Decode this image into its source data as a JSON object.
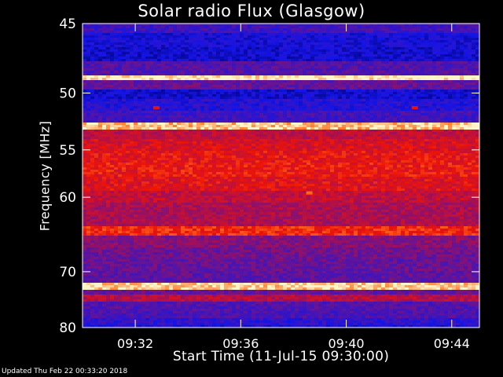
{
  "chart_data": {
    "type": "heatmap",
    "title": "Solar radio Flux (Glasgow)",
    "xlabel": "Start Time (11-Jul-15 09:30:00)",
    "ylabel": "Frequency [MHz]",
    "x_ticks": [
      "09:32",
      "09:36",
      "09:40",
      "09:44"
    ],
    "x_tick_minutes": [
      2,
      6,
      10,
      14
    ],
    "xlim_minutes": [
      0,
      15.05
    ],
    "y_ticks": [
      45,
      50,
      55,
      60,
      70,
      80
    ],
    "ylim": [
      45,
      80
    ],
    "y_scale": "reciprocal",
    "colormap": "blue-purple-red-yellow",
    "frequency_bands": [
      {
        "f": 45.2,
        "level": 0.3
      },
      {
        "f": 46.0,
        "level": 0.18
      },
      {
        "f": 47.0,
        "level": 0.15
      },
      {
        "f": 48.3,
        "level": 0.35
      },
      {
        "f": 48.8,
        "level": 1.0
      },
      {
        "f": 49.3,
        "level": 0.4
      },
      {
        "f": 50.0,
        "level": 0.15
      },
      {
        "f": 51.0,
        "level": 0.22
      },
      {
        "f": 52.0,
        "level": 0.3
      },
      {
        "f": 52.8,
        "level": 0.95
      },
      {
        "f": 53.6,
        "level": 0.6
      },
      {
        "f": 54.5,
        "level": 0.66
      },
      {
        "f": 55.5,
        "level": 0.7
      },
      {
        "f": 57.0,
        "level": 0.72
      },
      {
        "f": 58.5,
        "level": 0.68
      },
      {
        "f": 60.0,
        "level": 0.6
      },
      {
        "f": 61.5,
        "level": 0.55
      },
      {
        "f": 63.0,
        "level": 0.55
      },
      {
        "f": 64.2,
        "level": 0.75
      },
      {
        "f": 65.5,
        "level": 0.47
      },
      {
        "f": 67.0,
        "level": 0.42
      },
      {
        "f": 69.0,
        "level": 0.4
      },
      {
        "f": 71.0,
        "level": 0.38
      },
      {
        "f": 72.4,
        "level": 0.97
      },
      {
        "f": 73.5,
        "level": 0.4
      },
      {
        "f": 74.3,
        "level": 0.58
      },
      {
        "f": 76.0,
        "level": 0.35
      },
      {
        "f": 77.5,
        "level": 0.33
      },
      {
        "f": 79.0,
        "level": 0.25
      },
      {
        "f": 80.0,
        "level": 0.18
      }
    ],
    "bursts": [
      {
        "minute": 8.6,
        "f": 59.5,
        "level": 0.85
      },
      {
        "minute": 2.8,
        "f": 51.2,
        "level": 0.7
      },
      {
        "minute": 12.6,
        "f": 51.2,
        "level": 0.7
      }
    ]
  },
  "footer": "Updated Thu Feb 22 00:33:20 2018"
}
